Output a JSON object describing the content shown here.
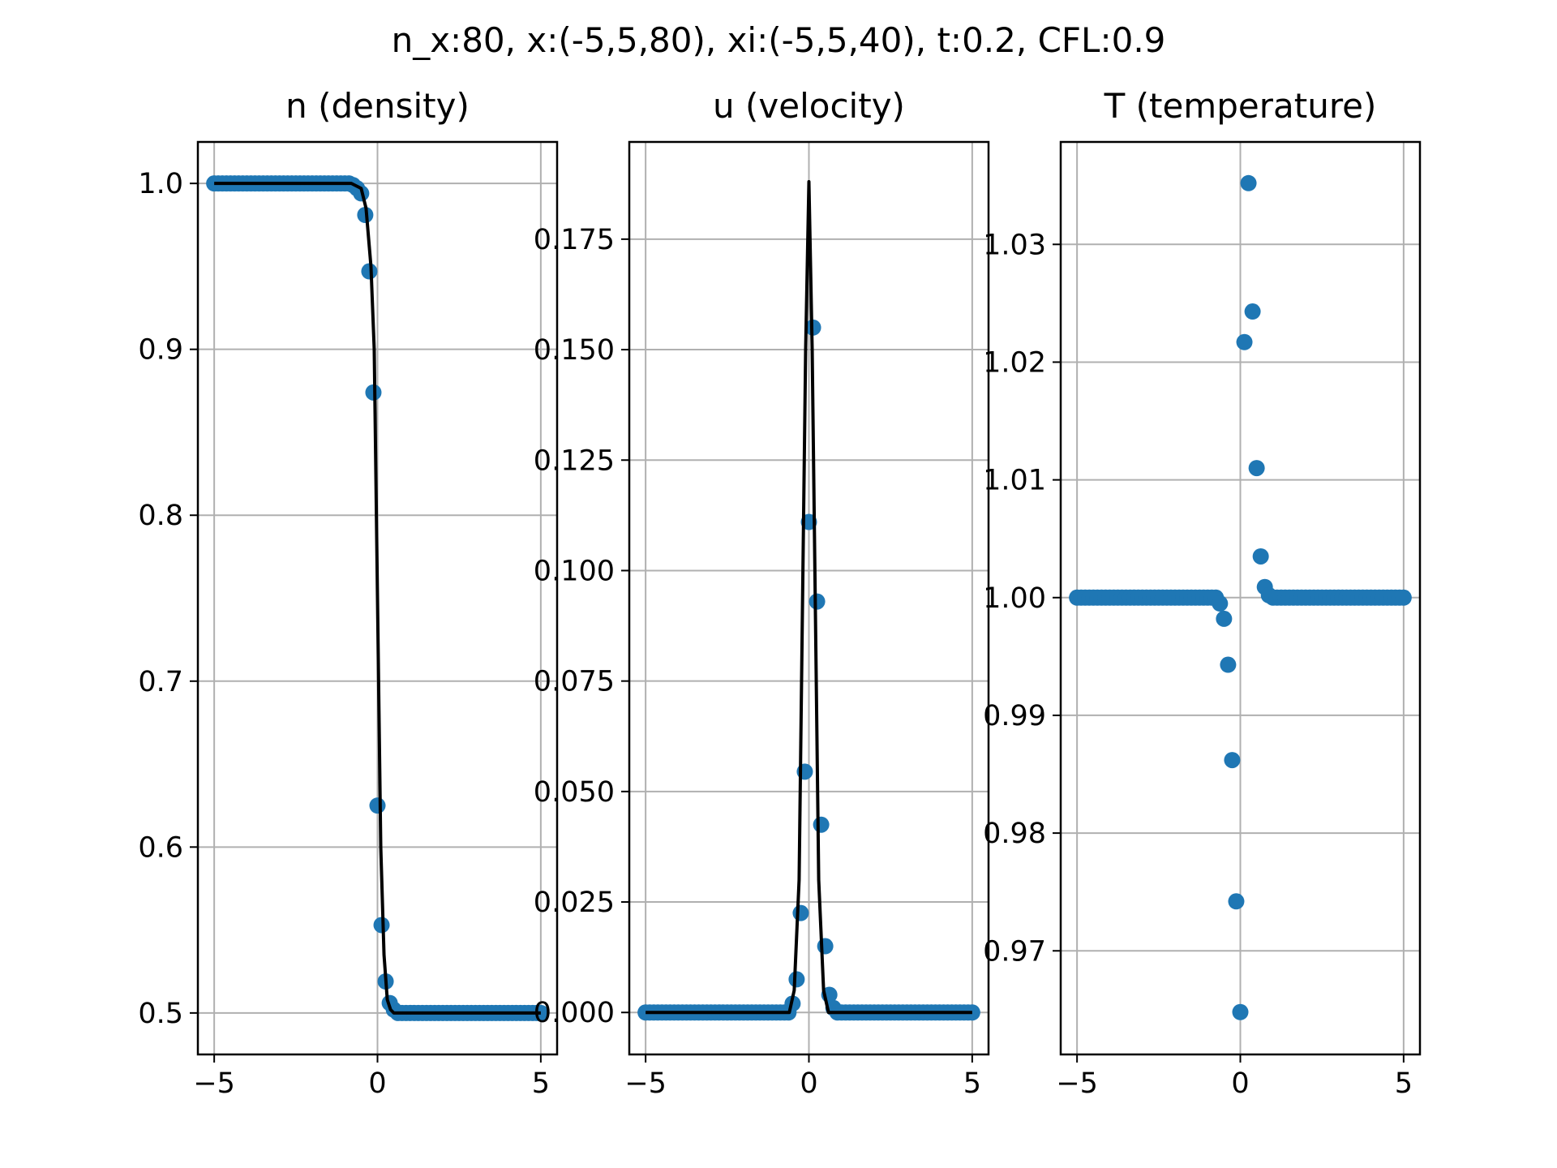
{
  "figure": {
    "suptitle": "n_x:80, x:(-5,5,80), xi:(-5,5,40), t:0.2, CFL:0.9"
  },
  "style": {
    "marker_color": "#1f77b4",
    "line_color": "#000000",
    "grid_color": "#b0b0b0"
  },
  "chart_data": [
    {
      "type": "scatter",
      "title": "n (density)",
      "xlim": [
        -5.5,
        5.5
      ],
      "ylim": [
        0.475,
        1.025
      ],
      "xticks": [
        -5,
        0,
        5
      ],
      "xtick_labels": [
        "−5",
        "0",
        "5"
      ],
      "yticks": [
        0.5,
        0.6,
        0.7,
        0.8,
        0.9,
        1.0
      ],
      "ytick_labels": [
        "0.5",
        "0.6",
        "0.7",
        "0.8",
        "0.9",
        "1.0"
      ],
      "grid": true,
      "series": [
        {
          "kind": "scatter",
          "x": [
            -5.0,
            -4.875,
            -4.75,
            -4.625,
            -4.5,
            -4.375,
            -4.25,
            -4.125,
            -4.0,
            -3.875,
            -3.75,
            -3.625,
            -3.5,
            -3.375,
            -3.25,
            -3.125,
            -3.0,
            -2.875,
            -2.75,
            -2.625,
            -2.5,
            -2.375,
            -2.25,
            -2.125,
            -2.0,
            -1.875,
            -1.75,
            -1.625,
            -1.5,
            -1.375,
            -1.25,
            -1.125,
            -1.0,
            -0.875,
            -0.75,
            -0.625,
            -0.5,
            -0.375,
            -0.25,
            -0.125,
            0.0,
            0.125,
            0.25,
            0.375,
            0.5,
            0.625,
            0.75,
            0.875,
            1.0,
            1.125,
            1.25,
            1.375,
            1.5,
            1.625,
            1.75,
            1.875,
            2.0,
            2.125,
            2.25,
            2.375,
            2.5,
            2.625,
            2.75,
            2.875,
            3.0,
            3.125,
            3.25,
            3.375,
            3.5,
            3.625,
            3.75,
            3.875,
            4.0,
            4.125,
            4.25,
            4.375,
            4.5,
            4.625,
            4.75,
            4.875,
            5.0
          ],
          "y": [
            1.0,
            1.0,
            1.0,
            1.0,
            1.0,
            1.0,
            1.0,
            1.0,
            1.0,
            1.0,
            1.0,
            1.0,
            1.0,
            1.0,
            1.0,
            1.0,
            1.0,
            1.0,
            1.0,
            1.0,
            1.0,
            1.0,
            1.0,
            1.0,
            1.0,
            1.0,
            1.0,
            1.0,
            1.0,
            1.0,
            1.0,
            1.0,
            1.0,
            1.0,
            0.999,
            0.997,
            0.994,
            0.981,
            0.947,
            0.874,
            0.625,
            0.553,
            0.519,
            0.506,
            0.502,
            0.5,
            0.5,
            0.5,
            0.5,
            0.5,
            0.5,
            0.5,
            0.5,
            0.5,
            0.5,
            0.5,
            0.5,
            0.5,
            0.5,
            0.5,
            0.5,
            0.5,
            0.5,
            0.5,
            0.5,
            0.5,
            0.5,
            0.5,
            0.5,
            0.5,
            0.5,
            0.5,
            0.5,
            0.5,
            0.5,
            0.5,
            0.5,
            0.5,
            0.5,
            0.5,
            0.5
          ]
        },
        {
          "kind": "line",
          "x": [
            -5.0,
            -0.8,
            -0.5,
            -0.35,
            -0.2,
            -0.1,
            0.0,
            0.1,
            0.2,
            0.3,
            0.4,
            0.5,
            0.7,
            5.0
          ],
          "y": [
            1.0,
            1.0,
            0.997,
            0.985,
            0.95,
            0.9,
            0.75,
            0.6,
            0.535,
            0.508,
            0.502,
            0.5,
            0.5,
            0.5
          ]
        }
      ]
    },
    {
      "type": "scatter",
      "title": "u (velocity)",
      "xlim": [
        -5.5,
        5.5
      ],
      "ylim": [
        -0.0095,
        0.197
      ],
      "xticks": [
        -5,
        0,
        5
      ],
      "xtick_labels": [
        "−5",
        "0",
        "5"
      ],
      "yticks": [
        0.0,
        0.025,
        0.05,
        0.075,
        0.1,
        0.125,
        0.15,
        0.175
      ],
      "ytick_labels": [
        "0.000",
        "0.025",
        "0.050",
        "0.075",
        "0.100",
        "0.125",
        "0.150",
        "0.175"
      ],
      "grid": true,
      "series": [
        {
          "kind": "scatter",
          "x": [
            -5.0,
            -4.875,
            -4.75,
            -4.625,
            -4.5,
            -4.375,
            -4.25,
            -4.125,
            -4.0,
            -3.875,
            -3.75,
            -3.625,
            -3.5,
            -3.375,
            -3.25,
            -3.125,
            -3.0,
            -2.875,
            -2.75,
            -2.625,
            -2.5,
            -2.375,
            -2.25,
            -2.125,
            -2.0,
            -1.875,
            -1.75,
            -1.625,
            -1.5,
            -1.375,
            -1.25,
            -1.125,
            -1.0,
            -0.875,
            -0.75,
            -0.625,
            -0.5,
            -0.375,
            -0.25,
            -0.125,
            0.0,
            0.125,
            0.25,
            0.375,
            0.5,
            0.625,
            0.75,
            0.875,
            1.0,
            1.125,
            1.25,
            1.375,
            1.5,
            1.625,
            1.75,
            1.875,
            2.0,
            2.125,
            2.25,
            2.375,
            2.5,
            2.625,
            2.75,
            2.875,
            3.0,
            3.125,
            3.25,
            3.375,
            3.5,
            3.625,
            3.75,
            3.875,
            4.0,
            4.125,
            4.25,
            4.375,
            4.5,
            4.625,
            4.75,
            4.875,
            5.0
          ],
          "y": [
            0.0,
            0.0,
            0.0,
            0.0,
            0.0,
            0.0,
            0.0,
            0.0,
            0.0,
            0.0,
            0.0,
            0.0,
            0.0,
            0.0,
            0.0,
            0.0,
            0.0,
            0.0,
            0.0,
            0.0,
            0.0,
            0.0,
            0.0,
            0.0,
            0.0,
            0.0,
            0.0,
            0.0,
            0.0,
            0.0,
            0.0,
            0.0,
            0.0,
            0.0,
            0.0,
            0.0,
            0.002,
            0.0075,
            0.0225,
            0.0545,
            0.111,
            0.155,
            0.093,
            0.0425,
            0.015,
            0.004,
            0.001,
            0.0,
            0.0,
            0.0,
            0.0,
            0.0,
            0.0,
            0.0,
            0.0,
            0.0,
            0.0,
            0.0,
            0.0,
            0.0,
            0.0,
            0.0,
            0.0,
            0.0,
            0.0,
            0.0,
            0.0,
            0.0,
            0.0,
            0.0,
            0.0,
            0.0,
            0.0,
            0.0,
            0.0,
            0.0,
            0.0,
            0.0,
            0.0,
            0.0,
            0.0
          ]
        },
        {
          "kind": "line",
          "x": [
            -5.0,
            -0.6,
            -0.45,
            -0.3,
            -0.2,
            -0.1,
            0.0,
            0.1,
            0.2,
            0.3,
            0.45,
            0.6,
            5.0
          ],
          "y": [
            0.0,
            0.0,
            0.005,
            0.03,
            0.09,
            0.15,
            0.188,
            0.15,
            0.09,
            0.03,
            0.005,
            0.0,
            0.0
          ]
        }
      ]
    },
    {
      "type": "scatter",
      "title": "T (temperature)",
      "xlim": [
        -5.5,
        5.5
      ],
      "ylim": [
        0.9612,
        1.0387
      ],
      "xticks": [
        -5,
        0,
        5
      ],
      "xtick_labels": [
        "−5",
        "0",
        "5"
      ],
      "yticks": [
        0.97,
        0.98,
        0.99,
        1.0,
        1.01,
        1.02,
        1.03
      ],
      "ytick_labels": [
        "0.97",
        "0.98",
        "0.99",
        "1.00",
        "1.01",
        "1.02",
        "1.03"
      ],
      "grid": true,
      "series": [
        {
          "kind": "scatter",
          "x": [
            -5.0,
            -4.875,
            -4.75,
            -4.625,
            -4.5,
            -4.375,
            -4.25,
            -4.125,
            -4.0,
            -3.875,
            -3.75,
            -3.625,
            -3.5,
            -3.375,
            -3.25,
            -3.125,
            -3.0,
            -2.875,
            -2.75,
            -2.625,
            -2.5,
            -2.375,
            -2.25,
            -2.125,
            -2.0,
            -1.875,
            -1.75,
            -1.625,
            -1.5,
            -1.375,
            -1.25,
            -1.125,
            -1.0,
            -0.875,
            -0.75,
            -0.625,
            -0.5,
            -0.375,
            -0.25,
            -0.125,
            0.0,
            0.125,
            0.25,
            0.375,
            0.5,
            0.625,
            0.75,
            0.875,
            1.0,
            1.125,
            1.25,
            1.375,
            1.5,
            1.625,
            1.75,
            1.875,
            2.0,
            2.125,
            2.25,
            2.375,
            2.5,
            2.625,
            2.75,
            2.875,
            3.0,
            3.125,
            3.25,
            3.375,
            3.5,
            3.625,
            3.75,
            3.875,
            4.0,
            4.125,
            4.25,
            4.375,
            4.5,
            4.625,
            4.75,
            4.875,
            5.0
          ],
          "y": [
            1.0,
            1.0,
            1.0,
            1.0,
            1.0,
            1.0,
            1.0,
            1.0,
            1.0,
            1.0,
            1.0,
            1.0,
            1.0,
            1.0,
            1.0,
            1.0,
            1.0,
            1.0,
            1.0,
            1.0,
            1.0,
            1.0,
            1.0,
            1.0,
            1.0,
            1.0,
            1.0,
            1.0,
            1.0,
            1.0,
            1.0,
            1.0,
            1.0,
            1.0,
            1.0,
            0.9995,
            0.9982,
            0.9943,
            0.9862,
            0.9742,
            0.9648,
            1.0217,
            1.0352,
            1.0243,
            1.011,
            1.0035,
            1.0009,
            1.0002,
            1.0,
            1.0,
            1.0,
            1.0,
            1.0,
            1.0,
            1.0,
            1.0,
            1.0,
            1.0,
            1.0,
            1.0,
            1.0,
            1.0,
            1.0,
            1.0,
            1.0,
            1.0,
            1.0,
            1.0,
            1.0,
            1.0,
            1.0,
            1.0,
            1.0,
            1.0,
            1.0,
            1.0,
            1.0,
            1.0,
            1.0,
            1.0,
            1.0
          ]
        }
      ]
    }
  ]
}
